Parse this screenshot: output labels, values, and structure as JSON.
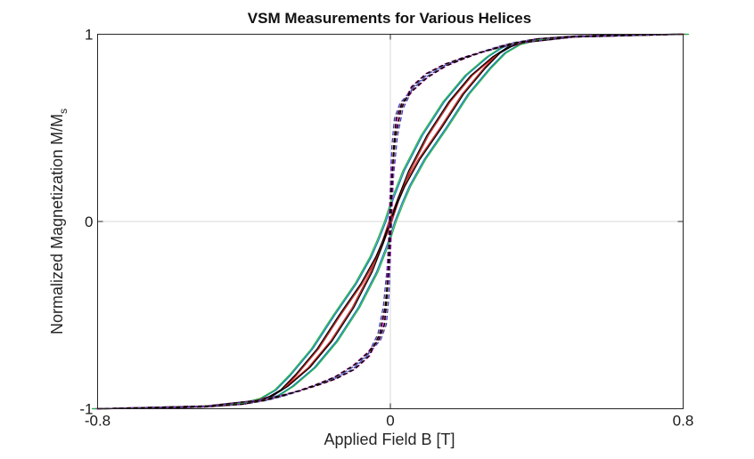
{
  "chart_data": {
    "type": "line",
    "title": "VSM Measurements for Various Helices",
    "xlabel": "Applied Field B [T]",
    "ylabel": {
      "text": "Normalized Magnetization M/M",
      "subscript": "s"
    },
    "xlim": [
      -0.8,
      0.8
    ],
    "ylim": [
      -1,
      1
    ],
    "xticks": [
      {
        "value": -0.8,
        "label": "-0.8"
      },
      {
        "value": 0,
        "label": "0"
      },
      {
        "value": 0.8,
        "label": "0.8"
      }
    ],
    "yticks": [
      {
        "value": -1,
        "label": "-1"
      },
      {
        "value": 0,
        "label": "0"
      },
      {
        "value": 1,
        "label": "1"
      }
    ],
    "grid": "zero-lines",
    "legend": "none",
    "loop_families": [
      {
        "style": "solid",
        "up_branch": [
          [
            -0.8,
            -1.0
          ],
          [
            -0.5,
            -0.985
          ],
          [
            -0.36,
            -0.955
          ],
          [
            -0.32,
            -0.93
          ],
          [
            -0.28,
            -0.88
          ],
          [
            -0.22,
            -0.78
          ],
          [
            -0.16,
            -0.64
          ],
          [
            -0.1,
            -0.46
          ],
          [
            -0.05,
            -0.27
          ],
          [
            -0.02,
            -0.12
          ],
          [
            0.0,
            0.0
          ],
          [
            0.02,
            0.1
          ],
          [
            0.04,
            0.19
          ],
          [
            0.08,
            0.33
          ],
          [
            0.14,
            0.5
          ],
          [
            0.2,
            0.68
          ],
          [
            0.26,
            0.82
          ],
          [
            0.3,
            0.9
          ],
          [
            0.34,
            0.945
          ],
          [
            0.4,
            0.975
          ],
          [
            0.5,
            0.99
          ],
          [
            0.65,
            0.998
          ],
          [
            0.8,
            1.0
          ]
        ]
      },
      {
        "style": "dashed",
        "up_branch": [
          [
            -0.8,
            -1.0
          ],
          [
            -0.5,
            -0.985
          ],
          [
            -0.36,
            -0.955
          ],
          [
            -0.3,
            -0.93
          ],
          [
            -0.25,
            -0.905
          ],
          [
            -0.2,
            -0.875
          ],
          [
            -0.15,
            -0.84
          ],
          [
            -0.1,
            -0.79
          ],
          [
            -0.06,
            -0.72
          ],
          [
            -0.03,
            -0.6
          ],
          [
            -0.015,
            -0.45
          ],
          [
            -0.005,
            -0.25
          ],
          [
            0.0,
            -0.05
          ],
          [
            0.003,
            0.15
          ],
          [
            0.008,
            0.4
          ],
          [
            0.015,
            0.55
          ],
          [
            0.03,
            0.63
          ],
          [
            0.06,
            0.7
          ],
          [
            0.1,
            0.77
          ],
          [
            0.15,
            0.83
          ],
          [
            0.2,
            0.87
          ],
          [
            0.25,
            0.905
          ],
          [
            0.3,
            0.935
          ],
          [
            0.34,
            0.955
          ],
          [
            0.4,
            0.975
          ],
          [
            0.5,
            0.99
          ],
          [
            0.65,
            0.998
          ],
          [
            0.8,
            1.0
          ]
        ]
      }
    ],
    "series": [
      {
        "family": 0,
        "color": "#1a7fbf",
        "offset": 0.012
      },
      {
        "family": 0,
        "color": "#27b24a",
        "offset": 0.016
      },
      {
        "family": 0,
        "color": "#cc2020",
        "offset": -0.004
      },
      {
        "family": 0,
        "color": "#000000",
        "offset": 0.0
      },
      {
        "family": 1,
        "color": "#3a3acf",
        "offset": -0.004
      },
      {
        "family": 1,
        "color": "#cc2bcc",
        "offset": 0.003
      },
      {
        "family": 1,
        "color": "#d08a1a",
        "offset": 0.0
      },
      {
        "family": 1,
        "color": "#000000",
        "offset": 0.001
      }
    ]
  }
}
